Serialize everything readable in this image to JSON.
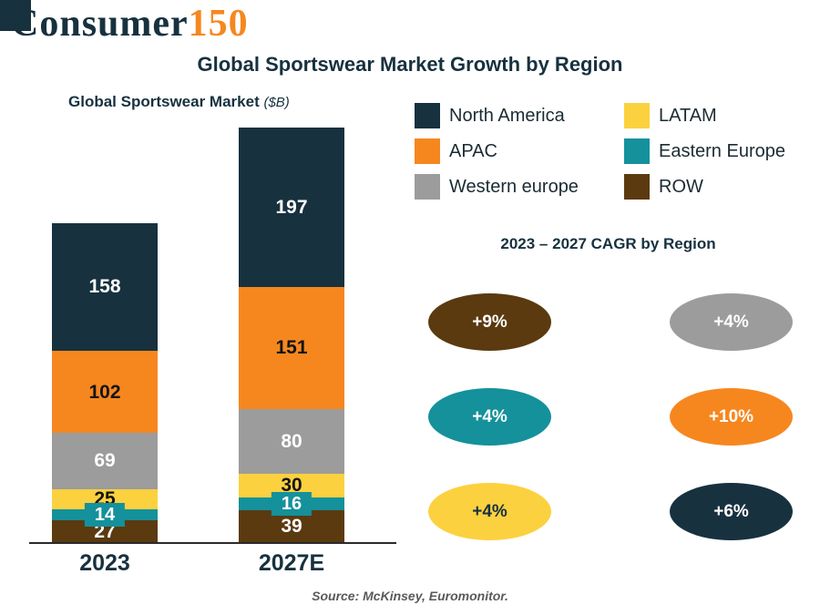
{
  "brand": {
    "word": "Consumer",
    "number": "150"
  },
  "title": "Global Sportswear Market Growth by Region",
  "chart": {
    "title": "Global Sportswear Market",
    "unit": "($B)"
  },
  "chart_data": {
    "type": "bar",
    "stacked": true,
    "title": "Global Sportswear Market ($B)",
    "unit": "$B",
    "categories": [
      "2023",
      "2027E"
    ],
    "totals": [
      395,
      513
    ],
    "series": [
      {
        "name": "ROW",
        "values": [
          27,
          39
        ],
        "color": "#5b3a10",
        "label_color": "#ffffff",
        "chip": false
      },
      {
        "name": "Eastern Europe",
        "values": [
          14,
          16
        ],
        "color": "#14919b",
        "label_color": "#ffffff",
        "chip": true
      },
      {
        "name": "LATAM",
        "values": [
          25,
          30
        ],
        "color": "#fcd13f",
        "label_color": "#141414",
        "chip": false
      },
      {
        "name": "Western europe",
        "values": [
          69,
          80
        ],
        "color": "#9c9c9c",
        "label_color": "#ffffff",
        "chip": false
      },
      {
        "name": "APAC",
        "values": [
          102,
          151
        ],
        "color": "#f6871f",
        "label_color": "#141414",
        "chip": false
      },
      {
        "name": "North America",
        "values": [
          158,
          197
        ],
        "color": "#17313f",
        "label_color": "#ffffff",
        "chip": false
      }
    ],
    "legend_position": "right",
    "grid": false
  },
  "legend": {
    "items": [
      {
        "label": "North America",
        "color": "#17313f"
      },
      {
        "label": "LATAM",
        "color": "#fcd13f"
      },
      {
        "label": "APAC",
        "color": "#f6871f"
      },
      {
        "label": "Eastern Europe",
        "color": "#14919b"
      },
      {
        "label": "Western europe",
        "color": "#9c9c9c"
      },
      {
        "label": "ROW",
        "color": "#5b3a10"
      }
    ]
  },
  "cagr": {
    "title": "2023 – 2027 CAGR by Region",
    "items": [
      {
        "region": "ROW",
        "label": "+9%",
        "color": "#5b3a10",
        "text_color": "#ffffff"
      },
      {
        "region": "Western europe",
        "label": "+4%",
        "color": "#9c9c9c",
        "text_color": "#ffffff"
      },
      {
        "region": "Eastern Europe",
        "label": "+4%",
        "color": "#14919b",
        "text_color": "#ffffff"
      },
      {
        "region": "APAC",
        "label": "+10%",
        "color": "#f6871f",
        "text_color": "#ffffff"
      },
      {
        "region": "LATAM",
        "label": "+4%",
        "color": "#fcd13f",
        "text_color": "#17313f"
      },
      {
        "region": "North America",
        "label": "+6%",
        "color": "#17313f",
        "text_color": "#ffffff"
      }
    ]
  },
  "footer": {
    "source": "Source: McKinsey, Euromonitor."
  }
}
